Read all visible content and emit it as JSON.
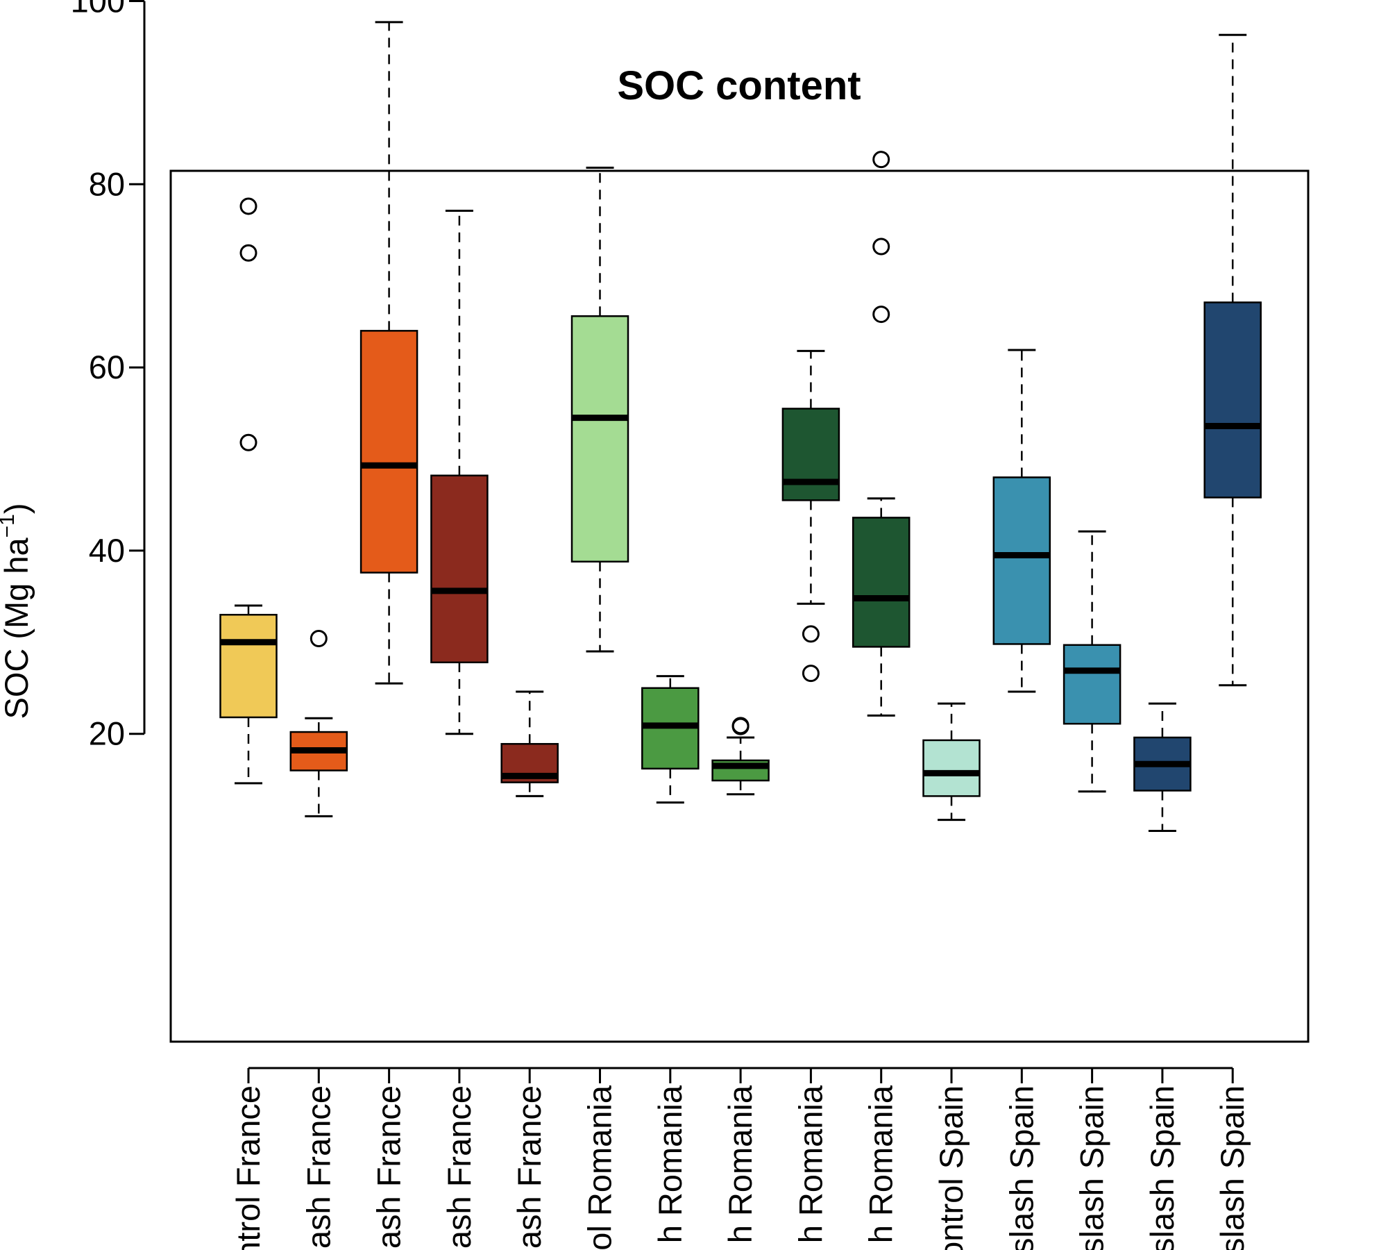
{
  "chart_data": {
    "type": "box",
    "title": "SOC content",
    "ylabel": {
      "main": "SOC (Mg ha",
      "superscript": "−1",
      "close": ")"
    },
    "xlabel": "",
    "ylim": [
      6,
      101
    ],
    "yticks": [
      20,
      40,
      60,
      80,
      100
    ],
    "grid": false,
    "categories": [
      "ntrol France",
      "ash France",
      "ash France",
      "ash France",
      "ash France",
      "ol Romania",
      "h Romania",
      "h Romania",
      "h Romania",
      "h Romania",
      "ontrol Spain",
      "slash Spain",
      "slash Spain",
      "slash Spain",
      "slash Spain"
    ],
    "boxes": [
      {
        "min": 14.6,
        "q1": 21.8,
        "median": 30.0,
        "q3": 33.0,
        "max": 34.0,
        "outliers": [
          51.8,
          72.5,
          77.6
        ],
        "color": "#F0C957"
      },
      {
        "min": 11.0,
        "q1": 16.0,
        "median": 18.2,
        "q3": 20.2,
        "max": 21.7,
        "outliers": [
          30.4
        ],
        "color": "#E45B1A"
      },
      {
        "min": 25.5,
        "q1": 37.6,
        "median": 49.3,
        "q3": 64.0,
        "max": 97.7,
        "outliers": [],
        "color": "#E45B1A"
      },
      {
        "min": 20.0,
        "q1": 27.8,
        "median": 35.6,
        "q3": 48.2,
        "max": 77.1,
        "outliers": [],
        "color": "#8B2A1E"
      },
      {
        "min": 13.2,
        "q1": 14.7,
        "median": 15.4,
        "q3": 18.9,
        "max": 24.6,
        "outliers": [],
        "color": "#8B2A1E"
      },
      {
        "min": 29.0,
        "q1": 38.8,
        "median": 54.5,
        "q3": 65.6,
        "max": 81.8,
        "outliers": [],
        "color": "#A4DC93"
      },
      {
        "min": 12.5,
        "q1": 16.2,
        "median": 20.9,
        "q3": 25.0,
        "max": 26.3,
        "outliers": [],
        "color": "#4B9A42"
      },
      {
        "min": 13.4,
        "q1": 14.9,
        "median": 16.5,
        "q3": 17.1,
        "max": 19.6,
        "outliers": [
          20.8,
          20.9
        ],
        "color": "#4B9A42"
      },
      {
        "min": 34.2,
        "q1": 45.5,
        "median": 47.5,
        "q3": 55.5,
        "max": 61.8,
        "outliers": [
          26.6,
          30.9
        ],
        "color": "#1E5631"
      },
      {
        "min": 22.0,
        "q1": 29.5,
        "median": 34.8,
        "q3": 43.6,
        "max": 45.7,
        "outliers": [
          65.8,
          73.2,
          82.7
        ],
        "color": "#1E5631"
      },
      {
        "min": 10.6,
        "q1": 13.2,
        "median": 15.7,
        "q3": 19.3,
        "max": 23.3,
        "outliers": [],
        "color": "#B3E3D2"
      },
      {
        "min": 24.6,
        "q1": 29.8,
        "median": 39.5,
        "q3": 48.0,
        "max": 61.9,
        "outliers": [],
        "color": "#3A91AF"
      },
      {
        "min": 13.7,
        "q1": 21.1,
        "median": 26.9,
        "q3": 29.7,
        "max": 42.1,
        "outliers": [],
        "color": "#3A91AF"
      },
      {
        "min": 9.4,
        "q1": 13.8,
        "median": 16.7,
        "q3": 19.6,
        "max": 23.3,
        "outliers": [],
        "color": "#21466F"
      },
      {
        "min": 25.3,
        "q1": 45.8,
        "median": 53.6,
        "q3": 67.1,
        "max": 96.3,
        "outliers": [],
        "color": "#21466F"
      }
    ]
  }
}
